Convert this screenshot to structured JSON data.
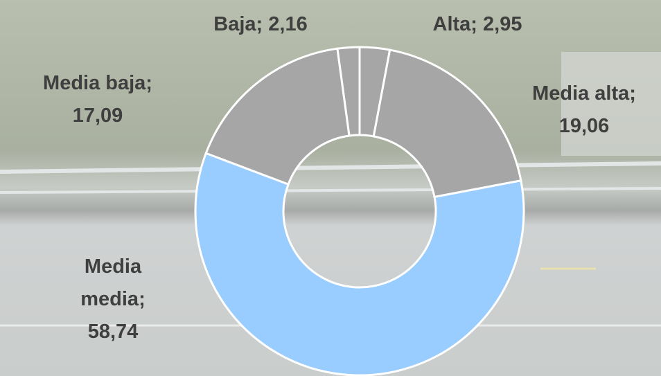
{
  "chart_data": {
    "type": "donut",
    "categories": [
      "Alta;",
      "Media alta;",
      "Media media;",
      "Media baja;",
      "Baja;"
    ],
    "values": [
      2.95,
      19.06,
      58.74,
      17.09,
      2.16
    ],
    "value_labels": [
      "2,95",
      "19,06",
      "58,74",
      "17,09",
      "2,16"
    ],
    "colors": [
      "#a6a6a6",
      "#a6a6a6",
      "#99ccff",
      "#a6a6a6",
      "#a6a6a6"
    ]
  }
}
